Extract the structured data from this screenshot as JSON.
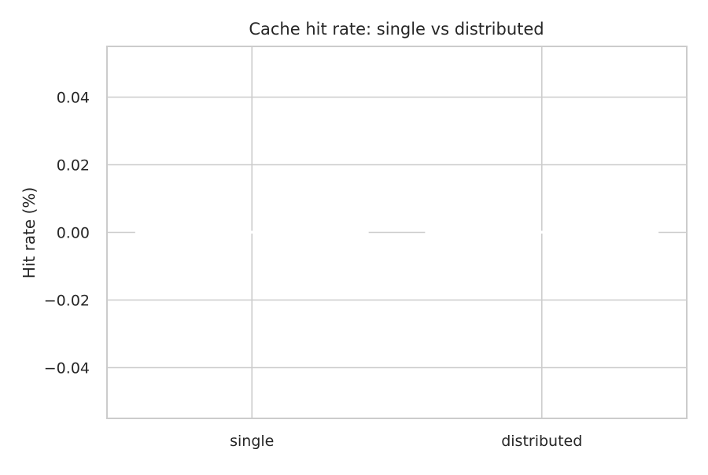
{
  "chart_data": {
    "type": "bar",
    "title": "Cache hit rate: single vs distributed",
    "xlabel": "",
    "ylabel": "Hit rate (%)",
    "categories": [
      "single",
      "distributed"
    ],
    "values": [
      0,
      0
    ],
    "ylim": [
      -0.055,
      0.055
    ],
    "yticks": [
      0.04,
      0.02,
      0.0,
      -0.02,
      -0.04
    ],
    "ytick_labels": [
      "0.04",
      "0.02",
      "0.00",
      "−0.02",
      "−0.04"
    ],
    "grid": true,
    "colors": {
      "background": "#ffffff",
      "grid": "#cccccc",
      "bar": "#ffffff",
      "text": "#262626"
    }
  }
}
